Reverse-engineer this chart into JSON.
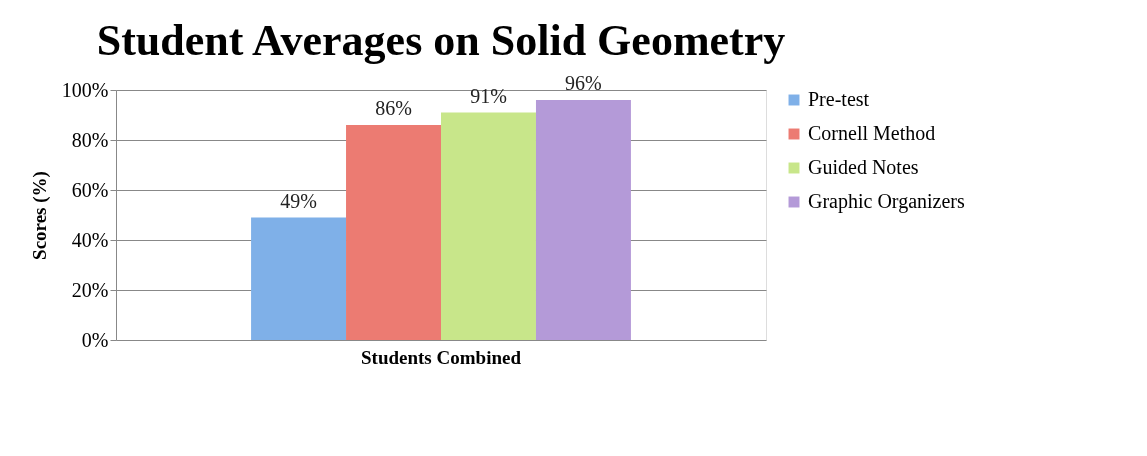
{
  "chart_data": {
    "type": "bar",
    "title": "Student Averages on Solid Geometry",
    "ylabel": "Scores (%)",
    "categories": [
      "Students Combined"
    ],
    "series": [
      {
        "name": "Pre-test",
        "color": "#7fb0e8",
        "values": [
          49
        ],
        "value_labels": [
          "49%"
        ]
      },
      {
        "name": "Cornell Method",
        "color": "#ec7b72",
        "values": [
          86
        ],
        "value_labels": [
          "86%"
        ]
      },
      {
        "name": "Guided Notes",
        "color": "#c8e68a",
        "values": [
          91
        ],
        "value_labels": [
          "91%"
        ]
      },
      {
        "name": "Graphic Organizers",
        "color": "#b49ad8",
        "values": [
          96
        ],
        "value_labels": [
          "96%"
        ]
      }
    ],
    "ylim": [
      0,
      100
    ],
    "yticks": [
      {
        "value": 0,
        "label": "0%"
      },
      {
        "value": 20,
        "label": "20%"
      },
      {
        "value": 40,
        "label": "40%"
      },
      {
        "value": 60,
        "label": "60%"
      },
      {
        "value": 80,
        "label": "80%"
      },
      {
        "value": 100,
        "label": "100%"
      }
    ],
    "grid": "y",
    "legend": "right"
  }
}
